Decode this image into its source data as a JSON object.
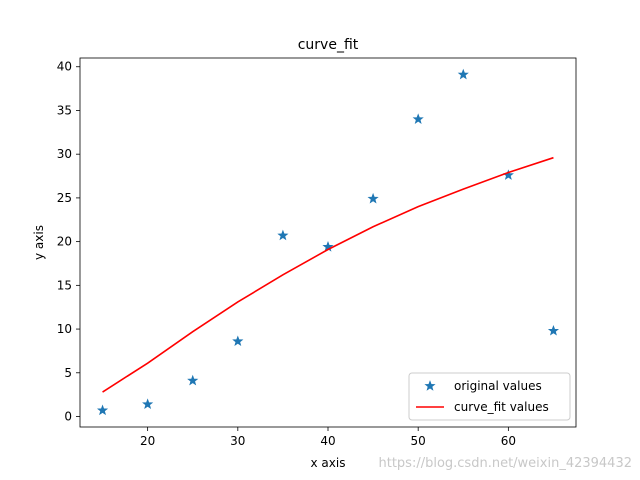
{
  "chart_data": {
    "type": "scatter",
    "title": "curve_fit",
    "xlabel": "x axis",
    "ylabel": "y axis",
    "xlim": [
      12.5,
      67.5
    ],
    "ylim": [
      -1.2,
      41.0
    ],
    "xticks": [
      20,
      30,
      40,
      50,
      60
    ],
    "yticks": [
      0,
      5,
      10,
      15,
      20,
      25,
      30,
      35,
      40
    ],
    "grid": false,
    "legend_position": "lower-right",
    "series": [
      {
        "name": "original values",
        "kind": "scatter",
        "marker": "star",
        "color": "#1f77b4",
        "x": [
          15,
          20,
          25,
          30,
          35,
          40,
          45,
          50,
          55,
          60,
          65
        ],
        "y": [
          0.7,
          1.4,
          4.1,
          8.6,
          20.7,
          19.4,
          24.9,
          34.0,
          39.1,
          27.6,
          9.8
        ]
      },
      {
        "name": "curve_fit values",
        "kind": "line",
        "color": "#ff0000",
        "x": [
          15,
          20,
          25,
          30,
          35,
          40,
          45,
          50,
          55,
          60,
          65
        ],
        "y": [
          2.8,
          6.1,
          9.7,
          13.1,
          16.2,
          19.1,
          21.7,
          24.0,
          26.0,
          27.9,
          29.6
        ]
      }
    ]
  },
  "watermark": "https://blog.csdn.net/weixin_42394432"
}
